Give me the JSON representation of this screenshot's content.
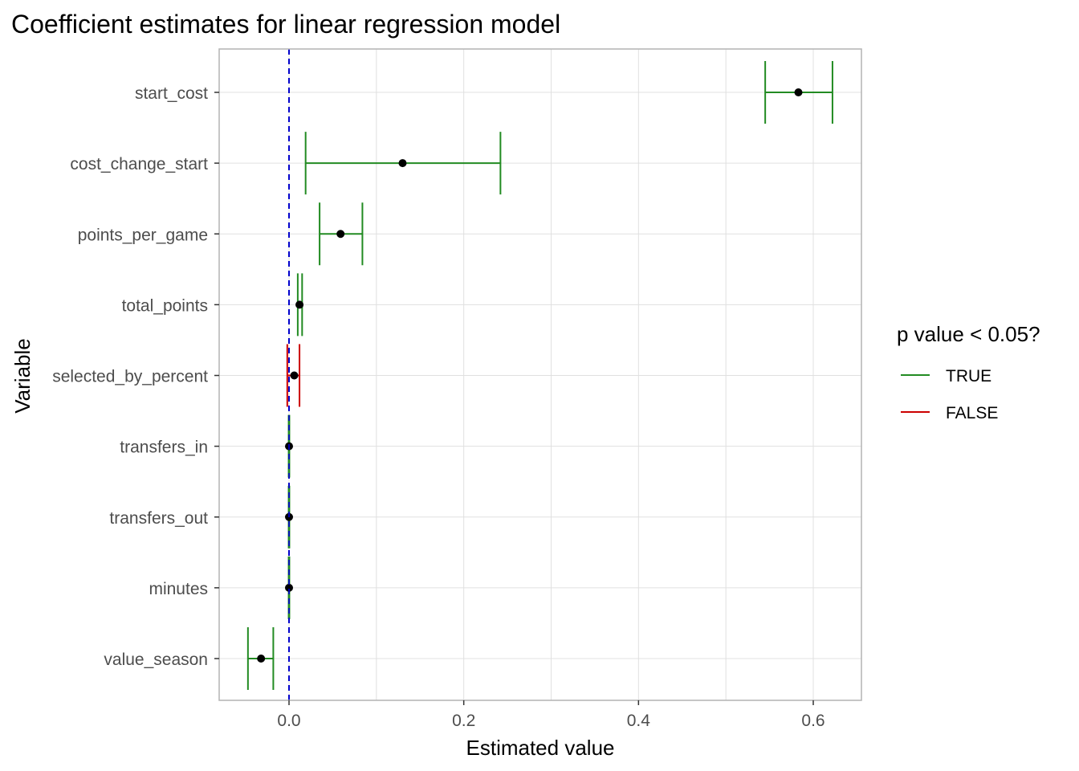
{
  "chart_data": {
    "type": "forest",
    "title": "Coefficient estimates for linear regression model",
    "xlabel": "Estimated value",
    "ylabel": "Variable",
    "xlim": [
      -0.078,
      0.656
    ],
    "x_ticks": [
      0.0,
      0.2,
      0.4,
      0.6
    ],
    "x_tick_labels": [
      "0.0",
      "0.2",
      "0.4",
      "0.6"
    ],
    "reference_line": {
      "x": 0,
      "style": "dashed",
      "color": "#0000cc"
    },
    "grid": true,
    "legend": {
      "title": "p value < 0.05?",
      "placement": "right",
      "entries": [
        {
          "label": "TRUE",
          "color": "#228b22"
        },
        {
          "label": "FALSE",
          "color": "#cc0000"
        }
      ]
    },
    "point_color": "#000000",
    "panel_border_color": "#b3b3b3",
    "grid_color": "#e0e0e0",
    "variables": [
      {
        "name": "start_cost",
        "estimate": 0.583,
        "lower": 0.545,
        "upper": 0.622,
        "significant": "TRUE"
      },
      {
        "name": "cost_change_start",
        "estimate": 0.13,
        "lower": 0.019,
        "upper": 0.242,
        "significant": "TRUE"
      },
      {
        "name": "points_per_game",
        "estimate": 0.059,
        "lower": 0.035,
        "upper": 0.084,
        "significant": "TRUE"
      },
      {
        "name": "total_points",
        "estimate": 0.012,
        "lower": 0.01,
        "upper": 0.015,
        "significant": "TRUE"
      },
      {
        "name": "selected_by_percent",
        "estimate": 0.006,
        "lower": -0.002,
        "upper": 0.012,
        "significant": "FALSE"
      },
      {
        "name": "transfers_in",
        "estimate": 0.0,
        "lower": -0.0004,
        "upper": 0.0004,
        "significant": "TRUE"
      },
      {
        "name": "transfers_out",
        "estimate": 0.0,
        "lower": -0.0004,
        "upper": 0.0004,
        "significant": "TRUE"
      },
      {
        "name": "minutes",
        "estimate": 0.0,
        "lower": -0.0004,
        "upper": 0.0004,
        "significant": "TRUE"
      },
      {
        "name": "value_season",
        "estimate": -0.032,
        "lower": -0.047,
        "upper": -0.018,
        "significant": "TRUE"
      }
    ]
  }
}
